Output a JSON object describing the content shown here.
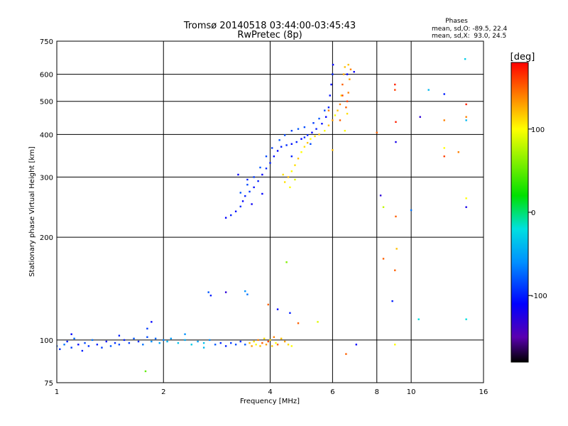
{
  "chart_data": {
    "type": "scatter",
    "title": "Tromsø 20140518 03:44:00-03:45:43",
    "subtitle": "RwPretec (8p)",
    "stats": {
      "heading": "Phases",
      "o_line": "mean, sd,O: -89.5, 22.4",
      "x_line": "mean, sd,X:  93.0, 24.5"
    },
    "xlabel": "Frequency [MHz]",
    "ylabel": "Stationary phase Virtual Height [km]",
    "x_scale": "log",
    "y_scale": "log",
    "xlim": [
      1,
      16
    ],
    "ylim": [
      75,
      750
    ],
    "x_ticks": [
      1,
      2,
      4,
      6,
      8,
      10,
      16
    ],
    "x_tick_labels": [
      "1",
      "2",
      "4",
      "6",
      "8",
      "10",
      "16"
    ],
    "y_ticks": [
      75,
      100,
      200,
      300,
      400,
      500,
      600,
      750
    ],
    "y_tick_labels": [
      "75",
      "100",
      "200",
      "300",
      "400",
      "500",
      "600",
      "750"
    ],
    "grid": true,
    "colorbar": {
      "label": "[deg]",
      "min": -180,
      "max": 180,
      "ticks": [
        100,
        0,
        -100
      ],
      "tick_labels": [
        "100",
        "0",
        "-100"
      ],
      "stops": [
        {
          "v": -180,
          "c": "#000000"
        },
        {
          "v": -150,
          "c": "#5a00b0"
        },
        {
          "v": -110,
          "c": "#0000ff"
        },
        {
          "v": -60,
          "c": "#0090ff"
        },
        {
          "v": -20,
          "c": "#00e0e0"
        },
        {
          "v": 20,
          "c": "#00e000"
        },
        {
          "v": 60,
          "c": "#80f000"
        },
        {
          "v": 100,
          "c": "#ffff00"
        },
        {
          "v": 140,
          "c": "#ff8000"
        },
        {
          "v": 180,
          "c": "#ff0000"
        }
      ]
    },
    "series": [
      {
        "points": [
          [
            1.0,
            96,
            -80
          ],
          [
            1.02,
            94,
            -95
          ],
          [
            1.05,
            97,
            -70
          ],
          [
            1.07,
            99,
            -100
          ],
          [
            1.1,
            95,
            -90
          ],
          [
            1.12,
            101,
            -75
          ],
          [
            1.15,
            97,
            -110
          ],
          [
            1.18,
            93,
            -100
          ],
          [
            1.2,
            98,
            -85
          ],
          [
            1.23,
            96,
            -95
          ],
          [
            1.26,
            100,
            -70
          ],
          [
            1.3,
            97,
            -100
          ],
          [
            1.34,
            95,
            -90
          ],
          [
            1.38,
            99,
            -105
          ],
          [
            1.42,
            96,
            -80
          ],
          [
            1.46,
            98,
            -95
          ],
          [
            1.5,
            97,
            -85
          ],
          [
            1.55,
            100,
            -100
          ],
          [
            1.6,
            98,
            -90
          ],
          [
            1.65,
            101,
            -80
          ],
          [
            1.7,
            99,
            -95
          ],
          [
            1.75,
            97,
            -70
          ],
          [
            1.8,
            102,
            -85
          ],
          [
            1.85,
            99,
            -60
          ],
          [
            1.9,
            101,
            -75
          ],
          [
            1.95,
            98,
            -50
          ],
          [
            2.0,
            100,
            -65
          ],
          [
            2.05,
            99,
            -40
          ],
          [
            2.1,
            101,
            -55
          ],
          [
            2.2,
            98,
            -35
          ],
          [
            2.3,
            100,
            -45
          ],
          [
            2.4,
            97,
            -30
          ],
          [
            2.5,
            99,
            -50
          ],
          [
            2.6,
            98,
            -35
          ],
          [
            2.7,
            100,
            -60
          ],
          [
            2.8,
            97,
            -80
          ],
          [
            2.9,
            98,
            -95
          ],
          [
            3.0,
            96,
            -100
          ],
          [
            3.1,
            98,
            -90
          ],
          [
            3.2,
            97,
            -85
          ],
          [
            3.3,
            99,
            -95
          ],
          [
            3.4,
            97,
            -80
          ],
          [
            1.1,
            104,
            -110
          ],
          [
            1.5,
            103,
            -100
          ],
          [
            1.8,
            108,
            -90
          ],
          [
            1.85,
            113,
            -110
          ],
          [
            2.3,
            104,
            -60
          ],
          [
            2.6,
            95,
            -40
          ],
          [
            1.78,
            81,
            50
          ]
        ]
      },
      {
        "points": [
          [
            3.5,
            98,
            120
          ],
          [
            3.55,
            96,
            130
          ],
          [
            3.6,
            99,
            110
          ],
          [
            3.65,
            97,
            100
          ],
          [
            3.7,
            100,
            140
          ],
          [
            3.75,
            96,
            120
          ],
          [
            3.8,
            98,
            150
          ],
          [
            3.85,
            101,
            110
          ],
          [
            3.9,
            97,
            130
          ],
          [
            3.95,
            99,
            160
          ],
          [
            4.0,
            100,
            110
          ],
          [
            4.05,
            96,
            120
          ],
          [
            4.1,
            102,
            140
          ],
          [
            4.15,
            98,
            100
          ],
          [
            4.2,
            97,
            150
          ],
          [
            4.3,
            101,
            120
          ],
          [
            4.4,
            99,
            130
          ],
          [
            4.5,
            97,
            110
          ],
          [
            4.6,
            96,
            100
          ]
        ]
      },
      {
        "points": [
          [
            2.68,
            138,
            -80
          ],
          [
            2.72,
            135,
            -100
          ],
          [
            3.0,
            138,
            -130
          ],
          [
            3.4,
            139,
            -60
          ],
          [
            3.45,
            136,
            -70
          ],
          [
            3.95,
            127,
            150
          ],
          [
            4.2,
            123,
            -110
          ],
          [
            4.45,
            169,
            60
          ],
          [
            4.55,
            120,
            -100
          ],
          [
            4.8,
            112,
            150
          ],
          [
            5.45,
            113,
            90
          ],
          [
            6.55,
            91,
            150
          ],
          [
            7.0,
            97,
            -110
          ]
        ]
      },
      {
        "points": [
          [
            3.0,
            228,
            -110
          ],
          [
            3.1,
            232,
            -100
          ],
          [
            3.2,
            238,
            -105
          ],
          [
            3.3,
            246,
            -95
          ],
          [
            3.35,
            255,
            -110
          ],
          [
            3.4,
            264,
            -100
          ],
          [
            3.5,
            272,
            -90
          ],
          [
            3.6,
            280,
            -105
          ],
          [
            3.7,
            292,
            -100
          ],
          [
            3.8,
            305,
            -110
          ],
          [
            3.9,
            318,
            -95
          ],
          [
            4.0,
            330,
            -100
          ],
          [
            4.1,
            345,
            -105
          ],
          [
            4.2,
            358,
            -110
          ],
          [
            4.3,
            368,
            -100
          ],
          [
            4.45,
            372,
            -95
          ],
          [
            4.6,
            375,
            -105
          ],
          [
            4.75,
            380,
            -100
          ],
          [
            4.9,
            388,
            -110
          ],
          [
            5.0,
            392,
            -95
          ],
          [
            5.1,
            398,
            -100
          ],
          [
            5.25,
            405,
            -110
          ],
          [
            5.4,
            415,
            -100
          ],
          [
            5.6,
            430,
            -105
          ],
          [
            5.75,
            450,
            -110
          ],
          [
            5.85,
            480,
            -100
          ],
          [
            5.9,
            520,
            -105
          ],
          [
            5.95,
            560,
            -110
          ],
          [
            6.0,
            600,
            -100
          ],
          [
            6.02,
            640,
            -110
          ],
          [
            3.3,
            270,
            -80
          ],
          [
            3.45,
            285,
            -85
          ],
          [
            3.6,
            300,
            -90
          ],
          [
            3.75,
            320,
            -80
          ],
          [
            3.9,
            345,
            -85
          ],
          [
            4.05,
            365,
            -90
          ],
          [
            4.25,
            385,
            -80
          ],
          [
            4.4,
            398,
            -85
          ],
          [
            4.6,
            410,
            -90
          ],
          [
            4.8,
            415,
            -80
          ],
          [
            5.0,
            420,
            -85
          ],
          [
            5.3,
            432,
            -90
          ],
          [
            5.5,
            445,
            -80
          ],
          [
            5.7,
            470,
            -85
          ],
          [
            3.55,
            250,
            -115
          ],
          [
            3.8,
            268,
            -110
          ],
          [
            3.25,
            305,
            -110
          ],
          [
            3.45,
            295,
            -100
          ],
          [
            4.6,
            345,
            -100
          ],
          [
            5.2,
            375,
            -85
          ],
          [
            6.6,
            600,
            -110
          ],
          [
            6.9,
            610,
            -115
          ]
        ]
      },
      {
        "points": [
          [
            4.4,
            290,
            110
          ],
          [
            4.5,
            300,
            120
          ],
          [
            4.6,
            312,
            100
          ],
          [
            4.7,
            325,
            110
          ],
          [
            4.8,
            340,
            120
          ],
          [
            4.9,
            355,
            100
          ],
          [
            5.0,
            368,
            110
          ],
          [
            5.1,
            378,
            120
          ],
          [
            5.2,
            388,
            100
          ],
          [
            5.35,
            395,
            110
          ],
          [
            5.5,
            400,
            120
          ],
          [
            5.7,
            410,
            100
          ],
          [
            5.85,
            425,
            120
          ],
          [
            6.0,
            440,
            130
          ],
          [
            6.1,
            455,
            100
          ],
          [
            6.2,
            470,
            120
          ],
          [
            6.3,
            490,
            140
          ],
          [
            6.35,
            520,
            110
          ],
          [
            6.4,
            560,
            150
          ],
          [
            6.45,
            600,
            130
          ],
          [
            6.5,
            630,
            120
          ],
          [
            6.55,
            480,
            150
          ],
          [
            6.6,
            500,
            160
          ],
          [
            6.65,
            530,
            140
          ],
          [
            6.7,
            580,
            130
          ],
          [
            6.6,
            460,
            110
          ],
          [
            6.3,
            440,
            150
          ],
          [
            5.85,
            470,
            140
          ],
          [
            6.4,
            520,
            160
          ],
          [
            6.75,
            620,
            140
          ],
          [
            6.5,
            410,
            100
          ],
          [
            6.0,
            360,
            120
          ],
          [
            4.55,
            280,
            100
          ],
          [
            4.35,
            305,
            110
          ],
          [
            4.7,
            295,
            90
          ],
          [
            6.65,
            640,
            120
          ]
        ]
      },
      {
        "points": [
          [
            8.0,
            405,
            150
          ],
          [
            8.2,
            265,
            -130
          ],
          [
            8.35,
            245,
            80
          ],
          [
            9.0,
            560,
            170
          ],
          [
            9.0,
            540,
            160
          ],
          [
            9.05,
            435,
            170
          ],
          [
            9.05,
            380,
            -120
          ],
          [
            9.05,
            230,
            150
          ],
          [
            9.1,
            185,
            120
          ],
          [
            9.0,
            160,
            150
          ],
          [
            8.35,
            173,
            150
          ],
          [
            8.85,
            130,
            -100
          ],
          [
            9.0,
            97,
            100
          ],
          [
            10.0,
            240,
            -70
          ],
          [
            10.5,
            115,
            -20
          ],
          [
            10.6,
            450,
            -130
          ],
          [
            11.2,
            540,
            -40
          ],
          [
            12.4,
            525,
            -100
          ],
          [
            12.4,
            440,
            140
          ],
          [
            12.4,
            365,
            100
          ],
          [
            12.4,
            345,
            160
          ],
          [
            13.6,
            355,
            140
          ],
          [
            14.2,
            665,
            -30
          ],
          [
            14.3,
            490,
            170
          ],
          [
            14.3,
            450,
            140
          ],
          [
            14.3,
            440,
            -40
          ],
          [
            14.3,
            260,
            100
          ],
          [
            14.3,
            245,
            -120
          ],
          [
            14.3,
            115,
            -20
          ]
        ]
      }
    ]
  }
}
